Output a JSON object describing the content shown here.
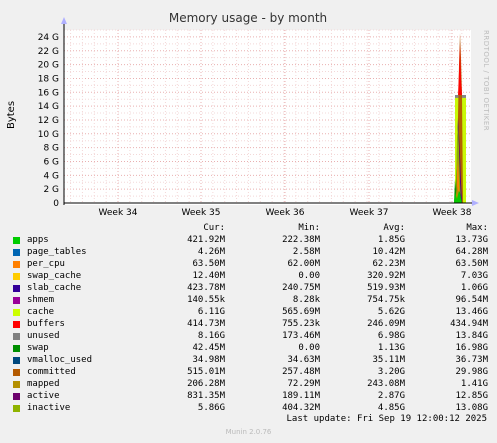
{
  "chart_data": {
    "type": "area",
    "title": "Memory usage - by month",
    "ylabel": "Bytes",
    "watermark": "RRDTOOL / TOBI OETIKER",
    "y_unit": "G",
    "ylim": [
      0,
      25
    ],
    "y_ticks": [
      0,
      2,
      4,
      6,
      8,
      10,
      12,
      14,
      16,
      18,
      20,
      22,
      24
    ],
    "y_tick_labels": [
      "0",
      "2 G",
      "4 G",
      "6 G",
      "8 G",
      "10 G",
      "12 G",
      "14 G",
      "16 G",
      "18 G",
      "20 G",
      "22 G",
      "24 G"
    ],
    "x_tick_labels": [
      "Week 34",
      "Week 35",
      "Week 36",
      "Week 37",
      "Week 38"
    ],
    "grid": true,
    "columns": [
      "Cur:",
      "Min:",
      "Avg:",
      "Max:"
    ],
    "series": [
      {
        "name": "apps",
        "color": "#00cc00",
        "cur": "421.92M",
        "min": "222.38M",
        "avg": "1.85G",
        "max": "13.73G"
      },
      {
        "name": "page_tables",
        "color": "#0066b3",
        "cur": "4.26M",
        "min": "2.58M",
        "avg": "10.42M",
        "max": "64.28M"
      },
      {
        "name": "per_cpu",
        "color": "#ff8000",
        "cur": "63.50M",
        "min": "62.00M",
        "avg": "62.23M",
        "max": "63.50M"
      },
      {
        "name": "swap_cache",
        "color": "#ffcc00",
        "cur": "12.40M",
        "min": "0.00",
        "avg": "320.92M",
        "max": "7.03G"
      },
      {
        "name": "slab_cache",
        "color": "#330099",
        "cur": "423.78M",
        "min": "240.75M",
        "avg": "519.93M",
        "max": "1.06G"
      },
      {
        "name": "shmem",
        "color": "#990099",
        "cur": "140.55k",
        "min": "8.28k",
        "avg": "754.75k",
        "max": "96.54M"
      },
      {
        "name": "cache",
        "color": "#ccff00",
        "cur": "6.11G",
        "min": "565.69M",
        "avg": "5.62G",
        "max": "13.46G"
      },
      {
        "name": "buffers",
        "color": "#ff0000",
        "cur": "414.73M",
        "min": "755.23k",
        "avg": "246.09M",
        "max": "434.94M"
      },
      {
        "name": "unused",
        "color": "#808080",
        "cur": "8.16G",
        "min": "173.46M",
        "avg": "6.98G",
        "max": "13.84G"
      },
      {
        "name": "swap",
        "color": "#008f00",
        "cur": "42.45M",
        "min": "0.00",
        "avg": "1.13G",
        "max": "16.98G"
      },
      {
        "name": "vmalloc_used",
        "color": "#00487d",
        "cur": "34.98M",
        "min": "34.63M",
        "avg": "35.11M",
        "max": "36.73M"
      },
      {
        "name": "committed",
        "color": "#b35a00",
        "cur": "515.01M",
        "min": "257.48M",
        "avg": "3.20G",
        "max": "29.98G"
      },
      {
        "name": "mapped",
        "color": "#b38f00",
        "cur": "206.28M",
        "min": "72.29M",
        "avg": "243.08M",
        "max": "1.41G"
      },
      {
        "name": "active",
        "color": "#6b006b",
        "cur": "831.35M",
        "min": "189.11M",
        "avg": "2.87G",
        "max": "12.85G"
      },
      {
        "name": "inactive",
        "color": "#8fb300",
        "cur": "5.86G",
        "min": "404.32M",
        "avg": "4.85G",
        "max": "13.08G"
      }
    ]
  },
  "footer": {
    "last_update": "Last update: Fri Sep 19 12:00:12 2025",
    "generator": "Munin 2.0.76"
  }
}
